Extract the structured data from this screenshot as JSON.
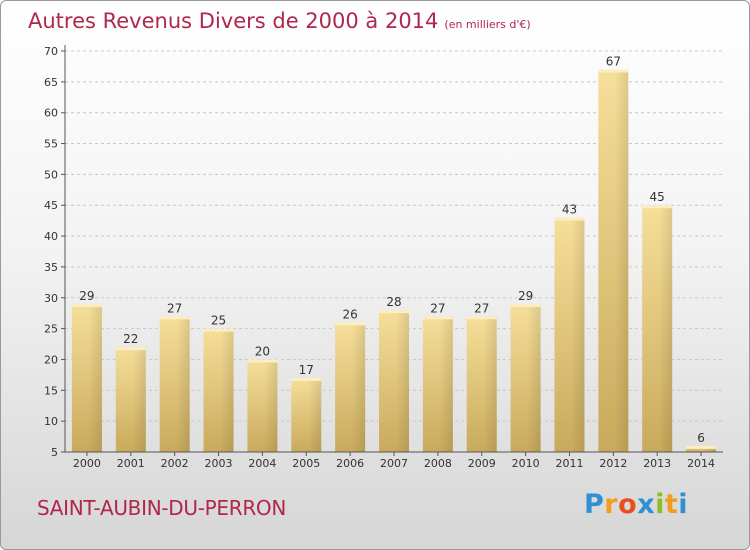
{
  "chart_data": {
    "type": "bar",
    "title": "Autres Revenus Divers de 2000 à 2014",
    "subtitle": "(en milliers d'€)",
    "categories": [
      "2000",
      "2001",
      "2002",
      "2003",
      "2004",
      "2005",
      "2006",
      "2007",
      "2008",
      "2009",
      "2010",
      "2011",
      "2012",
      "2013",
      "2014"
    ],
    "values": [
      29,
      22,
      27,
      25,
      20,
      17,
      26,
      28,
      27,
      27,
      29,
      43,
      67,
      45,
      6
    ],
    "ylim": [
      5,
      70
    ],
    "yticks": [
      5,
      10,
      15,
      20,
      25,
      30,
      35,
      40,
      45,
      50,
      55,
      60,
      65,
      70
    ],
    "grid": true,
    "bar_color": "#e8cc7c"
  },
  "commune": "SAINT-AUBIN-DU-PERRON",
  "logo": {
    "letters": [
      "P",
      "r",
      "o",
      "x",
      "i",
      "t",
      "i"
    ],
    "colors": [
      "#2f8fd0",
      "#f39c1e",
      "#e94f1c",
      "#2f8fd0",
      "#8cbf26",
      "#f39c1e",
      "#2f8fd0"
    ]
  }
}
